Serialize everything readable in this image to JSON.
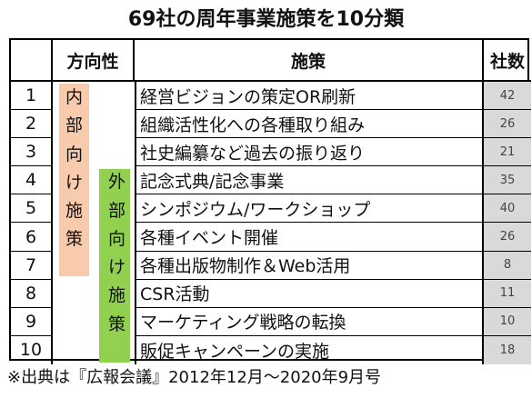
{
  "title": "69社の周年事業施策を10分類",
  "header": {
    "number": "",
    "direction": "方向性",
    "policy": "施策",
    "count": "社数"
  },
  "groups": {
    "inner": {
      "chars": [
        "内",
        "部",
        "向",
        "け",
        "施",
        "策"
      ],
      "color": "#f8cbad"
    },
    "outer": {
      "chars": [
        "外",
        "部",
        "向",
        "け",
        "施",
        "策"
      ],
      "color": "#92d050"
    }
  },
  "rows": [
    {
      "no": "1",
      "policy": "経営ビジョンの策定OR刷新",
      "count": "42"
    },
    {
      "no": "2",
      "policy": "組織活性化への各種取り組み",
      "count": "26"
    },
    {
      "no": "3",
      "policy": "社史編纂など過去の振り返り",
      "count": "21"
    },
    {
      "no": "4",
      "policy": "記念式典/記念事業",
      "count": "35"
    },
    {
      "no": "5",
      "policy": "シンポジウム/ワークショップ",
      "count": "40"
    },
    {
      "no": "6",
      "policy": "各種イベント開催",
      "count": "26"
    },
    {
      "no": "7",
      "policy": "各種出版物制作＆Web活用",
      "count": "8"
    },
    {
      "no": "8",
      "policy": "CSR活動",
      "count": "11"
    },
    {
      "no": "9",
      "policy": "マーケティング戦略の転換",
      "count": "10"
    },
    {
      "no": "10",
      "policy": "販促キャンペーンの実施",
      "count": "18"
    }
  ],
  "footnote": "※出典は『広報会議』2012年12月～2020年9月号"
}
